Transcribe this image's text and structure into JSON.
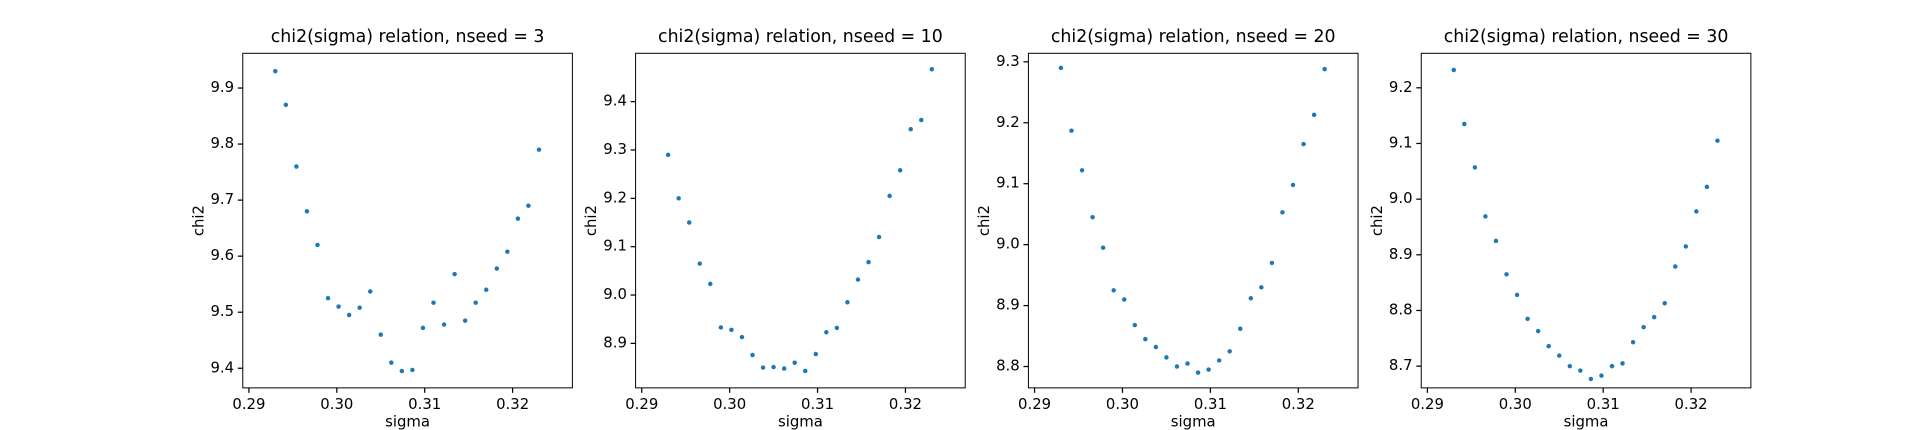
{
  "chart_data": [
    {
      "type": "scatter",
      "title": "chi2(sigma) relation, nseed = 3",
      "x_label": "sigma",
      "y_label": "chi2",
      "color": "#1f77b4",
      "x": [
        0.293,
        0.2942,
        0.2954,
        0.2966,
        0.2978,
        0.299,
        0.3002,
        0.3014,
        0.3026,
        0.3038,
        0.305,
        0.3062,
        0.3074,
        0.3086,
        0.3098,
        0.311,
        0.3122,
        0.3134,
        0.3146,
        0.3158,
        0.317,
        0.3182,
        0.3194,
        0.3206,
        0.3218,
        0.323
      ],
      "values": [
        9.93,
        9.87,
        9.76,
        9.68,
        9.62,
        9.525,
        9.51,
        9.495,
        9.508,
        9.537,
        9.46,
        9.41,
        9.395,
        9.397,
        9.472,
        9.517,
        9.478,
        9.568,
        9.485,
        9.517,
        9.54,
        9.578,
        9.608,
        9.667,
        9.69,
        9.79
      ],
      "xlim": [
        0.2893,
        0.3268
      ],
      "xticks": [
        0.29,
        {
          "value": 0.3,
          "label": "0.30"
        },
        0.31,
        0.32
      ],
      "ylim": [
        9.365,
        9.962
      ],
      "yticks": [
        9.4,
        9.5,
        9.6,
        9.7,
        9.8,
        9.9
      ]
    },
    {
      "type": "scatter",
      "title": "chi2(sigma) relation, nseed = 10",
      "x_label": "sigma",
      "y_label": "chi2",
      "color": "#1f77b4",
      "x": [
        0.293,
        0.2942,
        0.2954,
        0.2966,
        0.2978,
        0.299,
        0.3002,
        0.3014,
        0.3026,
        0.3038,
        0.305,
        0.3062,
        0.3074,
        0.3086,
        0.3098,
        0.311,
        0.3122,
        0.3134,
        0.3146,
        0.3158,
        0.317,
        0.3182,
        0.3194,
        0.3206,
        0.3218,
        0.323
      ],
      "values": [
        9.29,
        9.2,
        9.15,
        9.065,
        9.023,
        8.933,
        8.928,
        8.913,
        8.876,
        8.85,
        8.851,
        8.848,
        8.86,
        8.843,
        8.878,
        8.923,
        8.932,
        8.985,
        9.032,
        9.068,
        9.12,
        9.205,
        9.258,
        9.343,
        9.362,
        9.467
      ],
      "xlim": [
        0.2893,
        0.3268
      ],
      "xticks": [
        0.29,
        {
          "value": 0.3,
          "label": "0.30"
        },
        0.31,
        0.32
      ],
      "ylim": [
        8.808,
        9.5
      ],
      "yticks": [
        8.9,
        {
          "value": 9.0,
          "label": "9.0"
        },
        9.1,
        9.2,
        9.3,
        9.4
      ]
    },
    {
      "type": "scatter",
      "title": "chi2(sigma) relation, nseed = 20",
      "x_label": "sigma",
      "y_label": "chi2",
      "color": "#1f77b4",
      "x": [
        0.293,
        0.2942,
        0.2954,
        0.2966,
        0.2978,
        0.299,
        0.3002,
        0.3014,
        0.3026,
        0.3038,
        0.305,
        0.3062,
        0.3074,
        0.3086,
        0.3098,
        0.311,
        0.3122,
        0.3134,
        0.3146,
        0.3158,
        0.317,
        0.3182,
        0.3194,
        0.3206,
        0.3218,
        0.323
      ],
      "values": [
        9.29,
        9.187,
        9.122,
        9.045,
        8.995,
        8.925,
        8.91,
        8.868,
        8.845,
        8.832,
        8.815,
        8.8,
        8.805,
        8.79,
        8.795,
        8.81,
        8.825,
        8.862,
        8.912,
        8.93,
        8.97,
        9.053,
        9.098,
        9.165,
        9.213,
        9.288
      ],
      "xlim": [
        0.2893,
        0.3268
      ],
      "xticks": [
        0.29,
        {
          "value": 0.3,
          "label": "0.30"
        },
        0.31,
        0.32
      ],
      "ylim": [
        8.765,
        9.314
      ],
      "yticks": [
        8.8,
        8.9,
        {
          "value": 9.0,
          "label": "9.0"
        },
        9.1,
        9.2,
        9.3
      ]
    },
    {
      "type": "scatter",
      "title": "chi2(sigma) relation, nseed = 30",
      "x_label": "sigma",
      "y_label": "chi2",
      "color": "#1f77b4",
      "x": [
        0.293,
        0.2942,
        0.2954,
        0.2966,
        0.2978,
        0.299,
        0.3002,
        0.3014,
        0.3026,
        0.3038,
        0.305,
        0.3062,
        0.3074,
        0.3086,
        0.3098,
        0.311,
        0.3122,
        0.3134,
        0.3146,
        0.3158,
        0.317,
        0.3182,
        0.3194,
        0.3206,
        0.3218,
        0.323
      ],
      "values": [
        9.232,
        9.135,
        9.057,
        8.969,
        8.925,
        8.865,
        8.828,
        8.785,
        8.763,
        8.736,
        8.719,
        8.7,
        8.692,
        8.677,
        8.683,
        8.7,
        8.705,
        8.743,
        8.77,
        8.788,
        8.813,
        8.879,
        8.915,
        8.978,
        9.022,
        9.105
      ],
      "xlim": [
        0.2893,
        0.3268
      ],
      "xticks": [
        0.29,
        {
          "value": 0.3,
          "label": "0.30"
        },
        0.31,
        0.32
      ],
      "ylim": [
        8.661,
        9.262
      ],
      "yticks": [
        8.7,
        8.8,
        8.9,
        {
          "value": 9.0,
          "label": "9.0"
        },
        9.1,
        9.2
      ]
    }
  ]
}
